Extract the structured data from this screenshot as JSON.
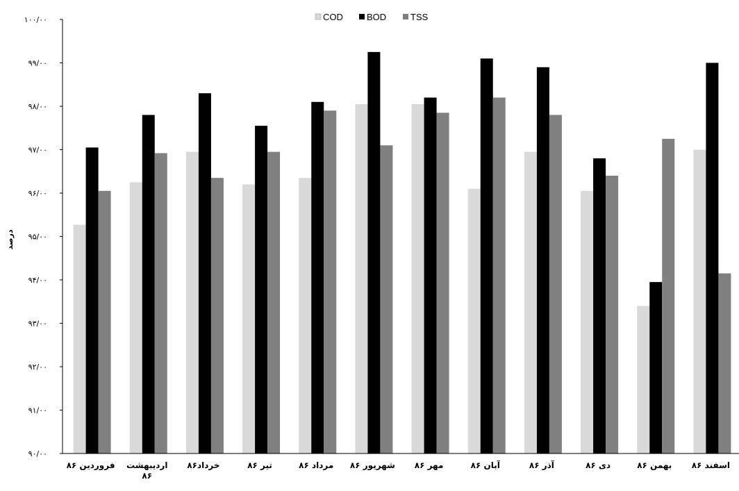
{
  "chart_data": {
    "type": "bar",
    "title": "",
    "xlabel": "",
    "ylabel": "درصد",
    "ylim": [
      90,
      100
    ],
    "yticks": [
      "۹۰/۰۰",
      "۹۱/۰۰",
      "۹۲/۰۰",
      "۹۳/۰۰",
      "۹۴/۰۰",
      "۹۵/۰۰",
      "۹۶/۰۰",
      "۹۷/۰۰",
      "۹۸/۰۰",
      "۹۹/۰۰",
      "۱۰۰/۰۰"
    ],
    "categories": [
      "فروردین ۸۶",
      "اردیبهشت ۸۶",
      "خرداد۸۶",
      "تیر ۸۶",
      "مرداد ۸۶",
      "شهریور ۸۶",
      "مهر ۸۶",
      "آبان ۸۶",
      "آذر ۸۶",
      "دی ۸۶",
      "بهمن ۸۶",
      "اسفند ۸۶"
    ],
    "series": [
      {
        "name": "COD",
        "color": "#d9d9d9",
        "values": [
          95.27,
          96.25,
          96.95,
          96.2,
          96.35,
          98.05,
          98.05,
          96.1,
          96.95,
          96.05,
          93.4,
          97.0
        ]
      },
      {
        "name": "BOD",
        "color": "#000000",
        "values": [
          97.05,
          97.8,
          98.3,
          97.55,
          98.1,
          99.25,
          98.2,
          99.1,
          98.9,
          96.8,
          93.95,
          99.0
        ]
      },
      {
        "name": "TSS",
        "color": "#808080",
        "values": [
          96.05,
          96.92,
          96.35,
          96.95,
          97.9,
          97.1,
          97.85,
          98.2,
          97.8,
          96.4,
          97.25,
          94.15
        ]
      }
    ],
    "legend": {
      "position": "top-center",
      "order": [
        "COD",
        "BOD",
        "TSS"
      ]
    },
    "grid": false
  }
}
